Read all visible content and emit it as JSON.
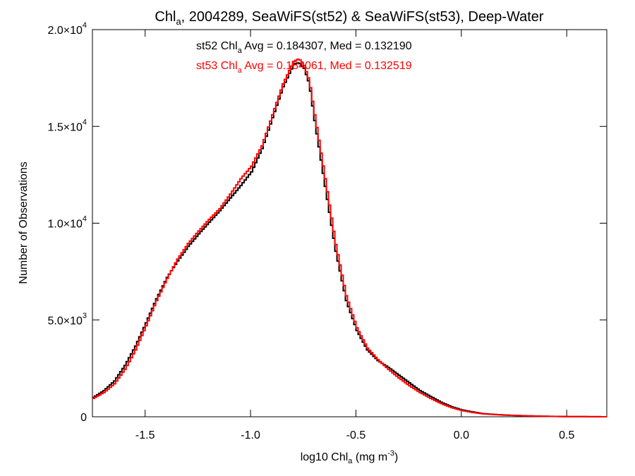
{
  "chart_data": {
    "type": "line",
    "title": {
      "prefix": "Chl",
      "sub": "a",
      "suffix": ", 2004289, SeaWiFS(st52) & SeaWiFS(st53), Deep-Water"
    },
    "xlabel": {
      "prefix": "log10 Chl",
      "sub": "a",
      "middle": " (mg m",
      "sup": "-3",
      "suffix": ")"
    },
    "ylabel": "Number of Observations",
    "xlim": [
      -1.75,
      0.69
    ],
    "ylim": [
      0,
      20000
    ],
    "x_ticks": [
      {
        "value": -1.5,
        "label": "-1.5"
      },
      {
        "value": -1.0,
        "label": "-1.0"
      },
      {
        "value": -0.5,
        "label": "-0.5"
      },
      {
        "value": 0.0,
        "label": "0.0"
      },
      {
        "value": 0.5,
        "label": "0.5"
      }
    ],
    "y_ticks": [
      {
        "value": 0,
        "mantissa": "0",
        "exp": ""
      },
      {
        "value": 5000,
        "mantissa": "5.0×10",
        "exp": "3"
      },
      {
        "value": 10000,
        "mantissa": "1.0×10",
        "exp": "4"
      },
      {
        "value": 15000,
        "mantissa": "1.5×10",
        "exp": "4"
      },
      {
        "value": 20000,
        "mantissa": "2.0×10",
        "exp": "4"
      }
    ],
    "annotations": [
      {
        "series": "st52",
        "prefix": "st52 Chl",
        "sub": "a",
        "suffix": " Avg = 0.184307, Med = 0.132190",
        "color": "#000000"
      },
      {
        "series": "st53",
        "prefix": "st53 Chl",
        "sub": "a",
        "suffix": " Avg = 0.184061, Med = 0.132519",
        "color": "#ff0000"
      }
    ],
    "step": "histogram",
    "x": [
      -1.75,
      -1.7,
      -1.65,
      -1.6,
      -1.55,
      -1.5,
      -1.45,
      -1.4,
      -1.35,
      -1.3,
      -1.25,
      -1.2,
      -1.15,
      -1.1,
      -1.05,
      -1.0,
      -0.95,
      -0.9,
      -0.85,
      -0.8,
      -0.775,
      -0.75,
      -0.725,
      -0.7,
      -0.65,
      -0.6,
      -0.55,
      -0.5,
      -0.45,
      -0.4,
      -0.35,
      -0.3,
      -0.25,
      -0.2,
      -0.15,
      -0.1,
      -0.05,
      0.0,
      0.05,
      0.1,
      0.2,
      0.3,
      0.4,
      0.5,
      0.6,
      0.69
    ],
    "series": [
      {
        "name": "st52",
        "color": "#000000",
        "values": [
          1000,
          1350,
          1850,
          2650,
          3650,
          4850,
          6100,
          7200,
          8050,
          8800,
          9450,
          10050,
          10650,
          11300,
          11950,
          12650,
          13850,
          15450,
          17050,
          18200,
          18300,
          18000,
          17200,
          15300,
          11900,
          8550,
          6000,
          4450,
          3450,
          2900,
          2550,
          2150,
          1750,
          1350,
          1050,
          750,
          520,
          350,
          250,
          160,
          90,
          50,
          25,
          10,
          5,
          0
        ]
      },
      {
        "name": "st53",
        "color": "#ff0000",
        "values": [
          950,
          1250,
          1700,
          2450,
          3450,
          4700,
          6000,
          7150,
          8150,
          8950,
          9600,
          10200,
          10750,
          11500,
          12300,
          12950,
          14000,
          15600,
          17200,
          18350,
          18500,
          18150,
          17350,
          15600,
          12300,
          8900,
          6250,
          4600,
          3550,
          2950,
          2450,
          2000,
          1600,
          1250,
          950,
          680,
          470,
          320,
          220,
          150,
          85,
          45,
          22,
          10,
          5,
          0
        ]
      }
    ]
  }
}
